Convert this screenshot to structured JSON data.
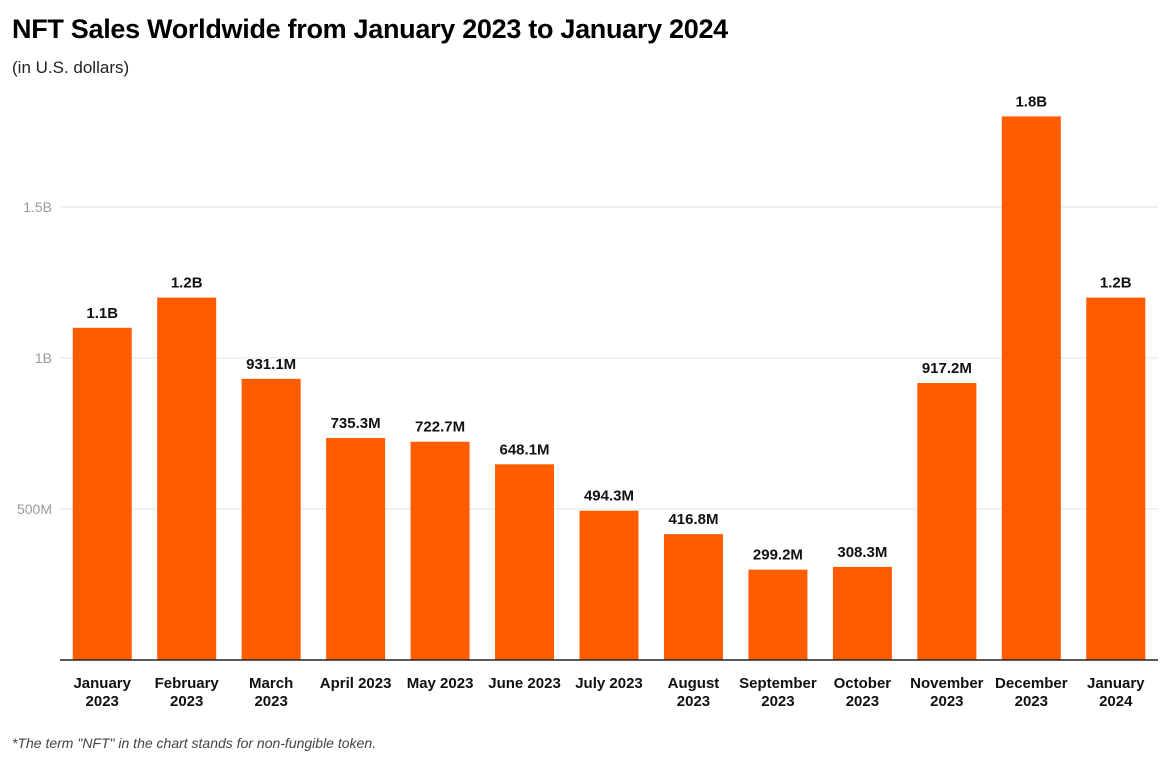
{
  "title": "NFT Sales Worldwide from January 2023 to January 2024",
  "subtitle": "(in U.S. dollars)",
  "footnote": "*The term \"NFT\" in the chart stands for non-fungible token.",
  "chart_data": {
    "type": "bar",
    "title": "NFT Sales Worldwide from January 2023 to January 2024",
    "subtitle": "(in U.S. dollars)",
    "xlabel": "",
    "ylabel": "",
    "categories": [
      [
        "January",
        "2023"
      ],
      [
        "February",
        "2023"
      ],
      [
        "March",
        "2023"
      ],
      [
        "April 2023"
      ],
      [
        "May 2023"
      ],
      [
        "June 2023"
      ],
      [
        "July 2023"
      ],
      [
        "August",
        "2023"
      ],
      [
        "September",
        "2023"
      ],
      [
        "October",
        "2023"
      ],
      [
        "November",
        "2023"
      ],
      [
        "December",
        "2023"
      ],
      [
        "January",
        "2024"
      ]
    ],
    "values": [
      1100000000,
      1200000000,
      931100000,
      735300000,
      722700000,
      648100000,
      494300000,
      416800000,
      299200000,
      308300000,
      917200000,
      1800000000,
      1200000000
    ],
    "data_labels": [
      "1.1B",
      "1.2B",
      "931.1M",
      "735.3M",
      "722.7M",
      "648.1M",
      "494.3M",
      "416.8M",
      "299.2M",
      "308.3M",
      "917.2M",
      "1.8B",
      "1.2B"
    ],
    "ylim": [
      0,
      1800000000
    ],
    "yticks": [
      {
        "value": 500000000,
        "label": "500M"
      },
      {
        "value": 1000000000,
        "label": "1B"
      },
      {
        "value": 1500000000,
        "label": "1.5B"
      }
    ],
    "grid": true,
    "legend": "none",
    "bar_color": "#ff5c00",
    "grid_color": "#e3e3e3",
    "axis_color": "#222222"
  }
}
